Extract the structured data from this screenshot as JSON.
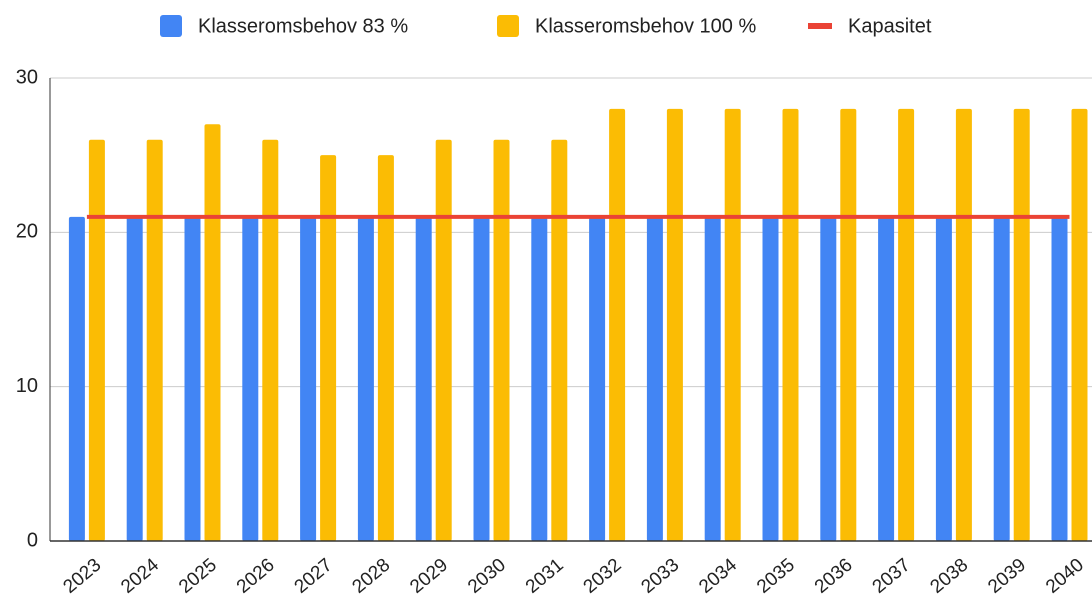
{
  "chart_data": {
    "type": "bar",
    "categories": [
      "2023",
      "2024",
      "2025",
      "2026",
      "2027",
      "2028",
      "2029",
      "2030",
      "2031",
      "2032",
      "2033",
      "2034",
      "2035",
      "2036",
      "2037",
      "2038",
      "2039",
      "2040"
    ],
    "series": [
      {
        "name": "Klasseromsbehov 83 %",
        "color": "#4285f4",
        "values": [
          21,
          21,
          21,
          21,
          21,
          21,
          21,
          21,
          21,
          21,
          21,
          21,
          21,
          21,
          21,
          21,
          21,
          21
        ]
      },
      {
        "name": "Klasseromsbehov 100 %",
        "color": "#fbbc04",
        "values": [
          26,
          26,
          27,
          26,
          25,
          25,
          26,
          26,
          26,
          28,
          28,
          28,
          28,
          28,
          28,
          28,
          28,
          28
        ]
      },
      {
        "name": "Kapasitet",
        "color": "#ea4335",
        "type": "line",
        "values": [
          21,
          21,
          21,
          21,
          21,
          21,
          21,
          21,
          21,
          21,
          21,
          21,
          21,
          21,
          21,
          21,
          21,
          21
        ]
      }
    ],
    "ylim": [
      0,
      30
    ],
    "yticks": [
      0,
      10,
      20,
      30
    ],
    "grid": true,
    "legend": "top"
  }
}
